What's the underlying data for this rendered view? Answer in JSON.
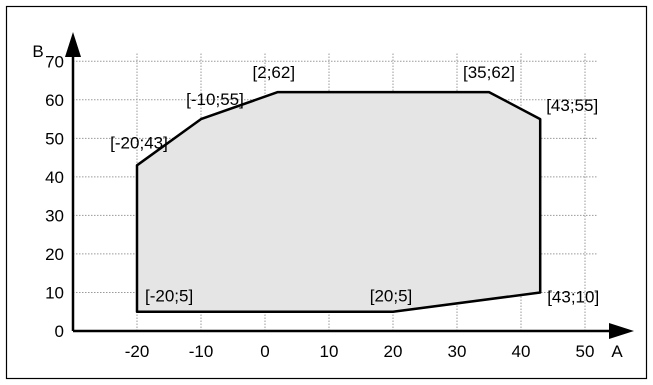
{
  "chart_data": {
    "type": "area",
    "title": "",
    "xlabel": "A",
    "ylabel": "B",
    "xlim": [
      -30,
      55
    ],
    "ylim": [
      0,
      75
    ],
    "x_ticks": [
      -20,
      -10,
      0,
      10,
      20,
      30,
      40,
      50
    ],
    "y_ticks": [
      0,
      10,
      20,
      30,
      40,
      50,
      60,
      70
    ],
    "grid": true,
    "fill_color": "#e5e5e5",
    "line_color": "#000000",
    "series": [
      {
        "points": [
          {
            "x": -20,
            "y": 5,
            "label": "[-20;5]"
          },
          {
            "x": 20,
            "y": 5,
            "label": "[20;5]"
          },
          {
            "x": 43,
            "y": 10,
            "label": "[43;10]"
          },
          {
            "x": 43,
            "y": 55,
            "label": "[43;55]"
          },
          {
            "x": 35,
            "y": 62,
            "label": "[35;62]"
          },
          {
            "x": 2,
            "y": 62,
            "label": "[2;62]"
          },
          {
            "x": -10,
            "y": 55,
            "label": "[-10;55]"
          },
          {
            "x": -20,
            "y": 43,
            "label": "[-20;43]"
          }
        ]
      }
    ]
  }
}
